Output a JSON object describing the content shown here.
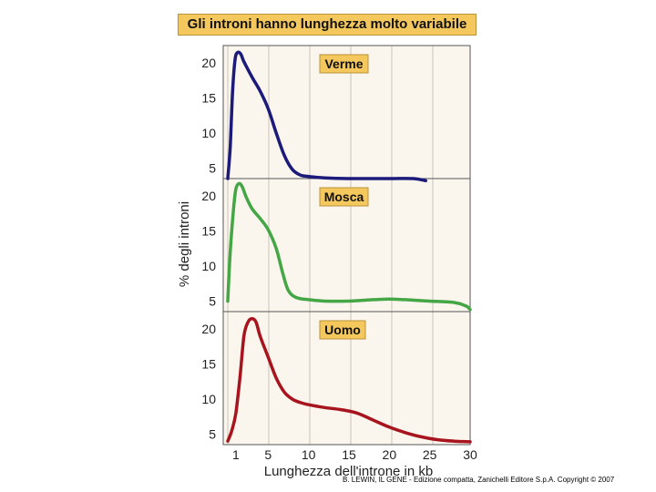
{
  "chart_data": [
    {
      "type": "line",
      "title": "Gli introni hanno lunghezza molto variabile",
      "panel_label": "Verme",
      "color": "#1c1a7a",
      "xlabel": "Lunghezza dell'introne in kb",
      "ylabel": "% degli introni",
      "xlim": [
        0,
        30
      ],
      "ylim": [
        3.5,
        22.5
      ],
      "yticks": [
        5,
        10,
        15,
        20
      ],
      "series": [
        {
          "name": "Verme",
          "x": [
            0,
            0.3,
            0.6,
            0.9,
            1.2,
            1.6,
            2.0,
            3.0,
            4.0,
            5.0,
            6.0,
            7.0,
            8.0,
            9.0,
            10,
            12,
            15,
            20,
            23,
            24.5
          ],
          "y": [
            3.5,
            8,
            16,
            20.5,
            21.5,
            21.3,
            20.2,
            18,
            16,
            13.5,
            10,
            6.8,
            4.8,
            4.0,
            3.8,
            3.6,
            3.5,
            3.5,
            3.5,
            3.2
          ]
        }
      ]
    },
    {
      "type": "line",
      "panel_label": "Mosca",
      "color": "#44a645",
      "xlim": [
        0,
        30
      ],
      "ylim": [
        3.5,
        22.5
      ],
      "yticks": [
        5,
        10,
        15,
        20
      ],
      "series": [
        {
          "name": "Mosca",
          "x": [
            0,
            0.3,
            0.7,
            1.0,
            1.4,
            1.8,
            2.3,
            3.0,
            4.0,
            5.0,
            6.0,
            6.8,
            7.5,
            8.5,
            10,
            12,
            15,
            18,
            20,
            22,
            25,
            28,
            29.5,
            30
          ],
          "y": [
            5,
            12,
            18,
            21,
            21.8,
            21.3,
            19.8,
            18.2,
            16.8,
            15.2,
            12.5,
            9,
            6.5,
            5.5,
            5.2,
            5,
            5,
            5.2,
            5.3,
            5.2,
            5.0,
            4.8,
            4.3,
            3.8
          ]
        }
      ]
    },
    {
      "type": "line",
      "panel_label": "Uomo",
      "color": "#a8141e",
      "xlim": [
        0,
        30
      ],
      "ylim": [
        3.5,
        22.5
      ],
      "xticks": [
        1,
        5,
        10,
        15,
        20,
        25,
        30
      ],
      "yticks": [
        5,
        10,
        15,
        20
      ],
      "series": [
        {
          "name": "Uomo",
          "x": [
            0,
            0.5,
            1.0,
            1.5,
            2.0,
            2.5,
            3.0,
            3.5,
            4.0,
            5.0,
            6.0,
            7.0,
            8.0,
            9.0,
            10,
            12,
            14,
            16,
            18,
            20,
            22,
            24,
            26,
            28,
            30
          ],
          "y": [
            4,
            5.5,
            8,
            13,
            19,
            21,
            21.5,
            21,
            19,
            16,
            13,
            11,
            10,
            9.5,
            9.2,
            8.8,
            8.5,
            8,
            7,
            6,
            5.2,
            4.6,
            4.2,
            4.0,
            3.9
          ]
        }
      ]
    }
  ],
  "credit": "B. LEWIN, IL GENE - Edizione compatta,  Zanichelli Editore S.p.A.  Copyright © 2007"
}
